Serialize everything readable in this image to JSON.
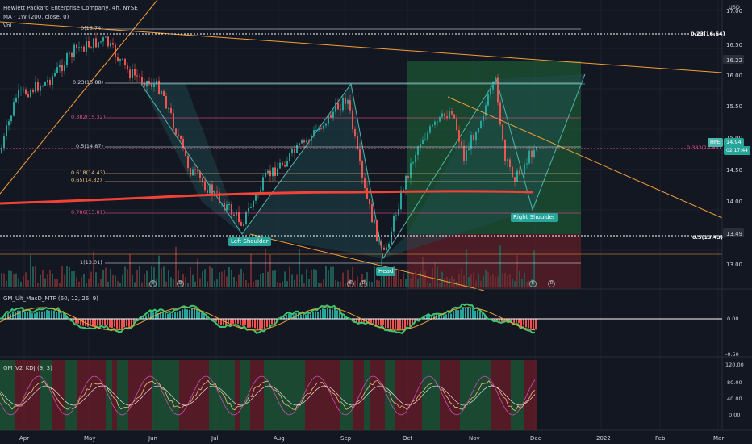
{
  "header": {
    "title": "Hewlett Packard Enterprise Company, 4h, NYSE",
    "ma": "MA · 1W (200, close, 0)",
    "vol": "Vol"
  },
  "currency": "USD",
  "price_axis": [
    "17.00",
    "16.50",
    "16.22",
    "16.00",
    "15.50",
    "15.00",
    "14.50",
    "14.00",
    "13.49",
    "13.00"
  ],
  "time_axis": [
    "Apr",
    "May",
    "Jun",
    "Jul",
    "Aug",
    "Sep",
    "Oct",
    "Nov",
    "Dec",
    "2022",
    "Feb",
    "Mar"
  ],
  "ticker": {
    "symbol": "HPE",
    "price": "14.94",
    "countdown": "02:17:44"
  },
  "fib_levels": [
    {
      "label": "0(16.74)",
      "color": "#d1d4dc"
    },
    {
      "label": "0.23(15.88)",
      "color": "#d1d4dc"
    },
    {
      "label": "0.382(15.32)",
      "color": "#e04d8b"
    },
    {
      "label": "0.5(14.87)",
      "color": "#d1d4dc"
    },
    {
      "label": "0.618(14.43)",
      "color": "#f0c27b"
    },
    {
      "label": "0.65(14.32)",
      "color": "#f0c27b"
    },
    {
      "label": "0.786(13.81)",
      "color": "#e04d8b"
    },
    {
      "label": "1(13.01)",
      "color": "#d1d4dc"
    }
  ],
  "fib_right_levels": [
    {
      "label": "0.23(16.64)"
    },
    {
      "label": "0.382(14.85)"
    },
    {
      "label": "0.5(13.43)"
    }
  ],
  "patterns": {
    "left_shoulder": "Left Shoulder",
    "head": "Head",
    "right_shoulder": "Right Shoulder"
  },
  "events": [
    "E",
    "D"
  ],
  "macd": {
    "name": "GM_Ult_MacD_MTF (60, 12, 26, 9)",
    "axis": [
      "0.00",
      "-0.50"
    ]
  },
  "kdj": {
    "name": "GM_V2_KDJ (9, 3)",
    "axis": [
      "120.00",
      "80.00",
      "40.00",
      "0.00"
    ]
  },
  "colors": {
    "bg": "#131722",
    "up": "#26a69a",
    "down": "#ef5350",
    "ma": "#f44336",
    "trend": "#f59e35",
    "teal": "#4db6ac"
  }
}
